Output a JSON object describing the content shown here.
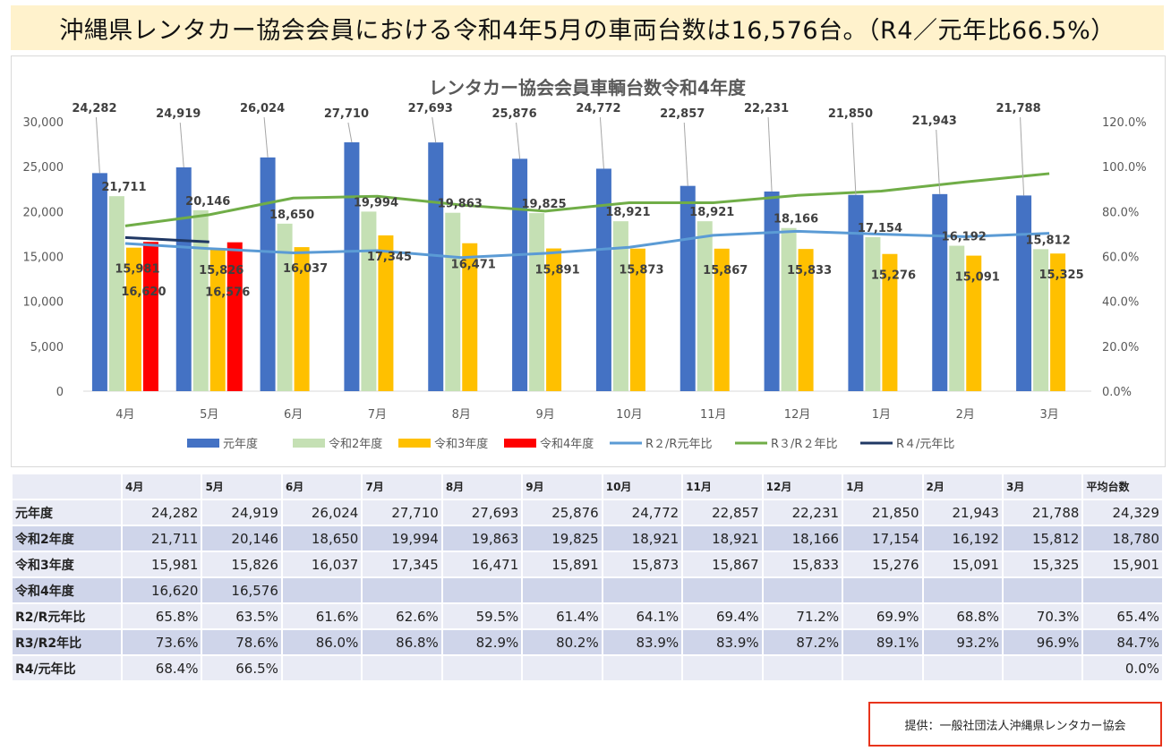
{
  "headline": "沖縄県レンタカー協会会員における令和4年5月の車両台数は16,576台。（R4／元年比66.5%）",
  "credit": "提供：一般社団法人沖縄県レンタカー協会",
  "chart_data": {
    "type": "bar",
    "title": "レンタカー協会会員車輌台数令和4年度",
    "categories": [
      "4月",
      "5月",
      "6月",
      "7月",
      "8月",
      "9月",
      "10月",
      "11月",
      "12月",
      "1月",
      "2月",
      "3月"
    ],
    "ylim": [
      0,
      30000
    ],
    "y_ticks": [
      "0",
      "5,000",
      "10,000",
      "15,000",
      "20,000",
      "25,000",
      "30,000"
    ],
    "y2lim": [
      0,
      120
    ],
    "y2_ticks": [
      "0.0%",
      "20.0%",
      "40.0%",
      "60.0%",
      "80.0%",
      "100.0%",
      "120.0%"
    ],
    "grid": false,
    "legend_position": "bottom",
    "series": [
      {
        "name": "元年度",
        "kind": "bar",
        "color": "#4472c4",
        "values": [
          24282,
          24919,
          26024,
          27710,
          27693,
          25876,
          24772,
          22857,
          22231,
          21850,
          21943,
          21788
        ],
        "labels": [
          "24,282",
          "24,919",
          "26,024",
          "27,710",
          "27,693",
          "25,876",
          "24,772",
          "22,857",
          "22,231",
          "21,850",
          "21,943",
          "21,788"
        ]
      },
      {
        "name": "令和2年度",
        "kind": "bar",
        "color": "#c5e0b4",
        "values": [
          21711,
          20146,
          18650,
          19994,
          19863,
          19825,
          18921,
          18921,
          18166,
          17154,
          16192,
          15812
        ],
        "labels": [
          "21,711",
          "20,146",
          "18,650",
          "19,994",
          "19,863",
          "19,825",
          "18,921",
          "18,921",
          "18,166",
          "17,154",
          "16,192",
          "15,812"
        ]
      },
      {
        "name": "令和3年度",
        "kind": "bar",
        "color": "#ffc000",
        "values": [
          15981,
          15826,
          16037,
          17345,
          16471,
          15891,
          15873,
          15867,
          15833,
          15276,
          15091,
          15325
        ],
        "labels": [
          "15,981",
          "15,826",
          "16,037",
          "17,345",
          "16,471",
          "15,891",
          "15,873",
          "15,867",
          "15,833",
          "15,276",
          "15,091",
          "15,325"
        ]
      },
      {
        "name": "令和4年度",
        "kind": "bar",
        "color": "#ff0000",
        "values": [
          16620,
          16576,
          null,
          null,
          null,
          null,
          null,
          null,
          null,
          null,
          null,
          null
        ],
        "labels": [
          "16,620",
          "16,576",
          "",
          "",
          "",
          "",
          "",
          "",
          "",
          "",
          "",
          ""
        ]
      },
      {
        "name": "R２/R元年比",
        "kind": "line",
        "axis": "right",
        "color": "#5b9bd5",
        "values": [
          65.8,
          63.5,
          61.6,
          62.6,
          59.5,
          61.4,
          64.1,
          69.4,
          71.2,
          69.9,
          68.8,
          70.3
        ]
      },
      {
        "name": "R３/R２年比",
        "kind": "line",
        "axis": "right",
        "color": "#70ad47",
        "values": [
          73.6,
          78.6,
          86.0,
          86.8,
          82.9,
          80.2,
          83.9,
          83.9,
          87.2,
          89.1,
          93.2,
          96.9
        ]
      },
      {
        "name": "R４/元年比",
        "kind": "line",
        "axis": "right",
        "color": "#203864",
        "values": [
          68.4,
          66.5,
          null,
          null,
          null,
          null,
          null,
          null,
          null,
          null,
          null,
          null
        ]
      }
    ]
  },
  "table": {
    "header": [
      "",
      "4月",
      "5月",
      "6月",
      "7月",
      "8月",
      "9月",
      "10月",
      "11月",
      "12月",
      "1月",
      "2月",
      "3月",
      "平均台数"
    ],
    "rows": [
      {
        "label": "元年度",
        "cells": [
          "24,282",
          "24,919",
          "26,024",
          "27,710",
          "27,693",
          "25,876",
          "24,772",
          "22,857",
          "22,231",
          "21,850",
          "21,943",
          "21,788",
          "24,329"
        ]
      },
      {
        "label": "令和2年度",
        "cells": [
          "21,711",
          "20,146",
          "18,650",
          "19,994",
          "19,863",
          "19,825",
          "18,921",
          "18,921",
          "18,166",
          "17,154",
          "16,192",
          "15,812",
          "18,780"
        ]
      },
      {
        "label": "令和3年度",
        "cells": [
          "15,981",
          "15,826",
          "16,037",
          "17,345",
          "16,471",
          "15,891",
          "15,873",
          "15,867",
          "15,833",
          "15,276",
          "15,091",
          "15,325",
          "15,901"
        ]
      },
      {
        "label": "令和4年度",
        "cells": [
          "16,620",
          "16,576",
          "",
          "",
          "",
          "",
          "",
          "",
          "",
          "",
          "",
          "",
          ""
        ]
      },
      {
        "label": "R2/R元年比",
        "cells": [
          "65.8%",
          "63.5%",
          "61.6%",
          "62.6%",
          "59.5%",
          "61.4%",
          "64.1%",
          "69.4%",
          "71.2%",
          "69.9%",
          "68.8%",
          "70.3%",
          "65.4%"
        ]
      },
      {
        "label": "R3/R2年比",
        "cells": [
          "73.6%",
          "78.6%",
          "86.0%",
          "86.8%",
          "82.9%",
          "80.2%",
          "83.9%",
          "83.9%",
          "87.2%",
          "89.1%",
          "93.2%",
          "96.9%",
          "84.7%"
        ]
      },
      {
        "label": "R4/元年比",
        "cells": [
          "68.4%",
          "66.5%",
          "",
          "",
          "",
          "",
          "",
          "",
          "",
          "",
          "",
          "",
          "0.0%"
        ]
      }
    ]
  }
}
